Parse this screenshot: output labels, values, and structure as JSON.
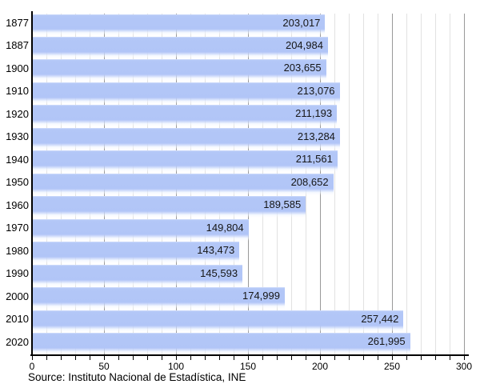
{
  "chart_data": {
    "type": "bar",
    "orientation": "horizontal",
    "title": "",
    "categories": [
      "1877",
      "1887",
      "1900",
      "1910",
      "1920",
      "1930",
      "1940",
      "1950",
      "1960",
      "1970",
      "1980",
      "1990",
      "2000",
      "2010",
      "2020"
    ],
    "values": [
      203017,
      204984,
      203655,
      213076,
      211193,
      213284,
      211561,
      208652,
      189585,
      149804,
      143473,
      145593,
      174999,
      257442,
      261995
    ],
    "value_labels": [
      "203,017",
      "204,984",
      "203,655",
      "213,076",
      "211,193",
      "213,284",
      "211,561",
      "208,652",
      "189,585",
      "149,804",
      "143,473",
      "145,593",
      "174,999",
      "257,442",
      "261,995"
    ],
    "xlabel": "",
    "ylabel": "",
    "xlim_thousands": [
      0,
      300
    ],
    "x_major_tick_step_thousands": 50,
    "x_minor_tick_step_thousands": 10,
    "x_tick_labels": [
      "0",
      "50",
      "100",
      "150",
      "200",
      "250",
      "300"
    ],
    "grid": "vertical gridlines: minor every 10 (light gray), major every 50 (dark gray)",
    "legend_position": "none"
  },
  "source_note": "Source: Instituto Nacional de Estadística, INE",
  "colors": {
    "bar": "#b2c6f7",
    "bar_highlight": "#d2defb",
    "grid_minor": "#e2e2e2",
    "grid_major": "#9a9a9a",
    "axis": "#000000",
    "text": "#000000"
  }
}
